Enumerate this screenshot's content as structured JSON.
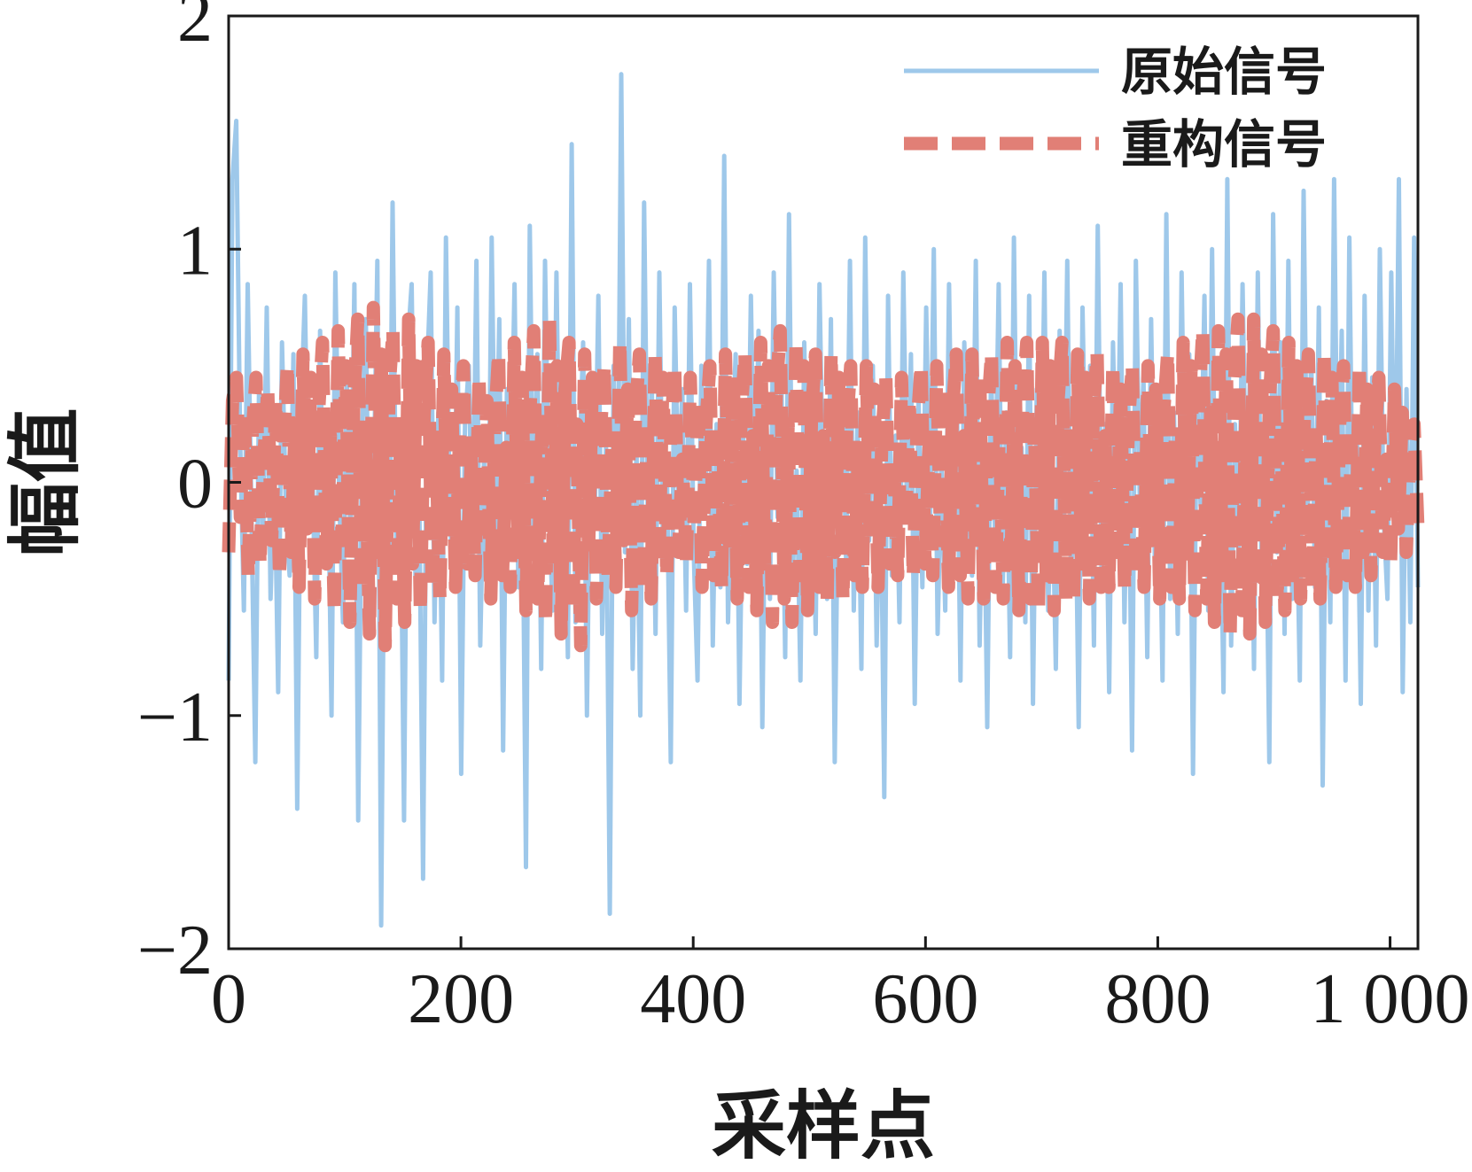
{
  "chart_data": {
    "type": "line",
    "title": "",
    "xlabel": "采样点",
    "ylabel": "幅值",
    "xlim": [
      0,
      1024
    ],
    "ylim": [
      -2,
      2
    ],
    "x_ticks": [
      0,
      200,
      400,
      600,
      800,
      1000
    ],
    "x_tick_labels": [
      "0",
      "200",
      "400",
      "600",
      "800",
      "1 000"
    ],
    "y_ticks": [
      -2,
      -1,
      0,
      1,
      2
    ],
    "y_tick_labels": [
      "−2",
      "−1",
      "0",
      "1",
      "2"
    ],
    "grid": false,
    "legend": "top-right",
    "series": [
      {
        "name": "原始信号",
        "color": "#9ec8ea",
        "style": "solid",
        "values": [
          -0.85,
          1.3,
          1.55,
          0.2,
          -0.55,
          0.85,
          -0.15,
          -1.2,
          0.45,
          -0.3,
          0.75,
          -0.5,
          0.1,
          -0.9,
          0.6,
          -0.1,
          -0.4,
          0.55,
          -1.4,
          0.3,
          0.8,
          -0.2,
          0.05,
          -0.75,
          0.65,
          -0.35,
          0.15,
          -1.0,
          0.9,
          -0.05,
          -0.6,
          0.45,
          -0.25,
          0.85,
          -1.45,
          0.2,
          0.7,
          -0.5,
          -0.1,
          0.95,
          -1.9,
          0.35,
          -0.7,
          1.2,
          -0.3,
          0.15,
          -1.45,
          0.6,
          0.85,
          -0.4,
          -0.05,
          -1.7,
          0.45,
          0.9,
          -0.6,
          0.3,
          -0.85,
          1.05,
          -0.15,
          -0.45,
          0.75,
          -1.25,
          0.25,
          0.5,
          -0.35,
          0.95,
          -0.7,
          0.1,
          -0.5,
          1.05,
          -0.2,
          0.7,
          -1.15,
          0.4,
          -0.05,
          0.85,
          -0.45,
          0.2,
          -1.65,
          1.1,
          -0.25,
          0.55,
          -0.8,
          0.95,
          -0.1,
          -0.55,
          0.9,
          -0.3,
          0.25,
          -0.75,
          1.45,
          -0.6,
          0.05,
          0.6,
          -1.0,
          0.35,
          -0.2,
          0.8,
          -0.65,
          0.15,
          -1.85,
          0.5,
          -0.4,
          1.75,
          -0.3,
          0.7,
          -0.8,
          0.15,
          -1.0,
          1.2,
          -0.2,
          0.45,
          -0.65,
          0.9,
          -0.35,
          0.05,
          -1.2,
          0.75,
          -0.1,
          0.4,
          -0.55,
          0.85,
          -0.3,
          -0.85,
          0.5,
          -0.15,
          0.95,
          -0.7,
          0.25,
          -0.45,
          1.4,
          -0.6,
          0.1,
          0.55,
          -0.95,
          0.2,
          -0.35,
          0.8,
          -0.2,
          0.65,
          -1.05,
          0.35,
          -0.5,
          0.9,
          -0.15,
          0.45,
          -0.75,
          1.15,
          -0.4,
          0.05,
          -0.85,
          0.6,
          -0.3,
          0.25,
          -0.65,
          0.85,
          -0.1,
          -0.5,
          0.7,
          -1.2,
          0.15,
          0.45,
          -0.35,
          0.95,
          -0.55,
          0.3,
          -0.8,
          1.05,
          -0.25,
          0.5,
          -0.7,
          0.15,
          -1.35,
          0.8,
          -0.4,
          0.2,
          -0.6,
          0.9,
          -0.15,
          0.55,
          -0.95,
          0.35,
          -0.45,
          0.75,
          -0.2,
          1.0,
          -0.65,
          0.1,
          -0.55,
          0.85,
          -0.3,
          0.45,
          -0.85,
          0.6,
          -0.1,
          -0.4,
          0.95,
          -0.7,
          0.25,
          -1.05,
          0.5,
          -0.2,
          0.85,
          -0.5,
          0.3,
          -0.75,
          1.05,
          -0.35,
          0.15,
          -0.6,
          0.8,
          -0.95,
          0.4,
          -0.25,
          0.9,
          -0.55,
          0.05,
          -0.8,
          0.65,
          -0.3,
          0.95,
          -0.45,
          0.2,
          -1.05,
          0.75,
          -0.15,
          0.5,
          -0.7,
          1.1,
          -0.4,
          0.25,
          -0.9,
          0.6,
          -0.2,
          0.85,
          -0.6,
          0.35,
          -1.15,
          0.95,
          -0.05,
          0.45,
          -0.75,
          0.7,
          -0.35,
          0.2,
          -0.85,
          1.15,
          -0.5,
          0.3,
          -0.65,
          0.9,
          -0.25,
          0.55,
          -1.25,
          0.4,
          -0.1,
          0.8,
          -0.55,
          1.0,
          -0.45,
          0.15,
          -0.9,
          1.3,
          -0.7,
          0.25,
          -0.35,
          0.85,
          -0.15,
          0.5,
          -0.8,
          0.9,
          -0.4,
          0.2,
          -1.2,
          1.15,
          -0.3,
          0.6,
          -0.65,
          0.95,
          -0.5,
          0.1,
          -0.85,
          1.25,
          -0.2,
          0.55,
          -0.45,
          0.75,
          -1.3,
          0.35,
          -0.6,
          1.3,
          -0.25,
          0.65,
          -0.85,
          1.05,
          -0.4,
          0.2,
          -0.95,
          0.8,
          -0.55,
          0.45,
          -0.7,
          1.0,
          -0.15,
          -0.5,
          0.9,
          -0.3,
          1.3,
          -0.9,
          0.4,
          -0.6,
          1.05,
          -0.45
        ]
      },
      {
        "name": "重构信号",
        "color": "#e17f76",
        "style": "dashed",
        "values": [
          -0.3,
          0.35,
          0.45,
          -0.15,
          0.3,
          -0.4,
          0.2,
          0.45,
          -0.35,
          0.1,
          0.4,
          -0.25,
          0.35,
          -0.4,
          0.15,
          0.5,
          -0.3,
          0.25,
          -0.45,
          0.55,
          -0.2,
          0.45,
          -0.5,
          0.3,
          0.6,
          -0.35,
          0.2,
          -0.55,
          0.65,
          -0.25,
          0.5,
          -0.6,
          0.35,
          0.7,
          -0.45,
          0.15,
          -0.65,
          0.75,
          -0.3,
          0.55,
          -0.7,
          0.4,
          0.65,
          -0.5,
          0.2,
          -0.6,
          0.7,
          -0.35,
          0.5,
          -0.55,
          0.3,
          0.6,
          -0.45,
          0.15,
          -0.5,
          0.55,
          -0.25,
          0.4,
          -0.45,
          0.2,
          0.5,
          -0.35,
          0.1,
          -0.4,
          0.45,
          -0.2,
          0.35,
          -0.5,
          0.25,
          0.55,
          -0.4,
          0.15,
          -0.45,
          0.6,
          -0.3,
          0.45,
          -0.55,
          0.3,
          0.65,
          -0.5,
          0.2,
          -0.6,
          0.7,
          -0.35,
          0.5,
          -0.65,
          0.4,
          0.6,
          -0.55,
          0.25,
          -0.7,
          0.55,
          -0.3,
          0.45,
          -0.5,
          0.2,
          0.5,
          -0.4,
          0.15,
          -0.45,
          0.6,
          -0.25,
          0.4,
          -0.55,
          0.3,
          0.55,
          -0.45,
          0.2,
          -0.5,
          0.55,
          -0.35,
          0.45,
          -0.4,
          0.2,
          0.5,
          -0.3,
          0.1,
          -0.35,
          0.45,
          -0.2,
          0.35,
          -0.45,
          0.25,
          0.5,
          -0.4,
          0.15,
          -0.45,
          0.55,
          -0.3,
          0.45,
          -0.5,
          0.3,
          0.55,
          -0.45,
          0.2,
          -0.55,
          0.6,
          -0.35,
          0.5,
          -0.6,
          0.4,
          0.65,
          -0.5,
          0.25,
          -0.6,
          0.6,
          -0.4,
          0.5,
          -0.55,
          0.3,
          0.55,
          -0.45,
          0.2,
          -0.5,
          0.55,
          -0.3,
          0.45,
          -0.5,
          0.25,
          0.5,
          -0.4,
          0.15,
          -0.45,
          0.5,
          -0.25,
          0.4,
          -0.45,
          0.2,
          0.45,
          -0.35,
          0.1,
          -0.4,
          0.45,
          -0.2,
          0.35,
          -0.4,
          0.25,
          0.5,
          -0.35,
          0.15,
          -0.4,
          0.5,
          -0.25,
          0.4,
          -0.45,
          0.3,
          0.55,
          -0.4,
          0.2,
          -0.5,
          0.55,
          -0.3,
          0.45,
          -0.5,
          0.3,
          0.55,
          -0.45,
          0.25,
          -0.5,
          0.6,
          -0.35,
          0.5,
          -0.55,
          0.35,
          0.6,
          -0.5,
          0.25,
          -0.55,
          0.6,
          -0.4,
          0.5,
          -0.55,
          0.35,
          0.6,
          -0.5,
          0.25,
          -0.5,
          0.55,
          -0.35,
          0.45,
          -0.5,
          0.3,
          0.55,
          -0.45,
          0.2,
          -0.45,
          0.5,
          -0.3,
          0.4,
          -0.45,
          0.25,
          0.5,
          -0.4,
          0.15,
          -0.45,
          0.5,
          -0.25,
          0.4,
          -0.5,
          0.3,
          0.55,
          -0.45,
          0.2,
          -0.5,
          0.6,
          -0.35,
          0.5,
          -0.55,
          0.35,
          0.65,
          -0.5,
          0.3,
          -0.6,
          0.65,
          -0.4,
          0.55,
          -0.65,
          0.4,
          0.7,
          -0.55,
          0.3,
          -0.65,
          0.7,
          -0.45,
          0.55,
          -0.6,
          0.35,
          0.65,
          -0.5,
          0.25,
          -0.55,
          0.6,
          -0.4,
          0.5,
          -0.5,
          0.3,
          0.55,
          -0.45,
          0.2,
          -0.5,
          0.55,
          -0.35,
          0.45,
          -0.45,
          0.25,
          0.5,
          -0.4,
          0.15,
          -0.45,
          0.5,
          -0.3,
          0.4,
          -0.4,
          0.2,
          0.45,
          -0.3,
          0.1,
          -0.35,
          0.4,
          -0.2,
          0.3,
          -0.3,
          0.15,
          0.25,
          -0.2
        ]
      }
    ]
  }
}
